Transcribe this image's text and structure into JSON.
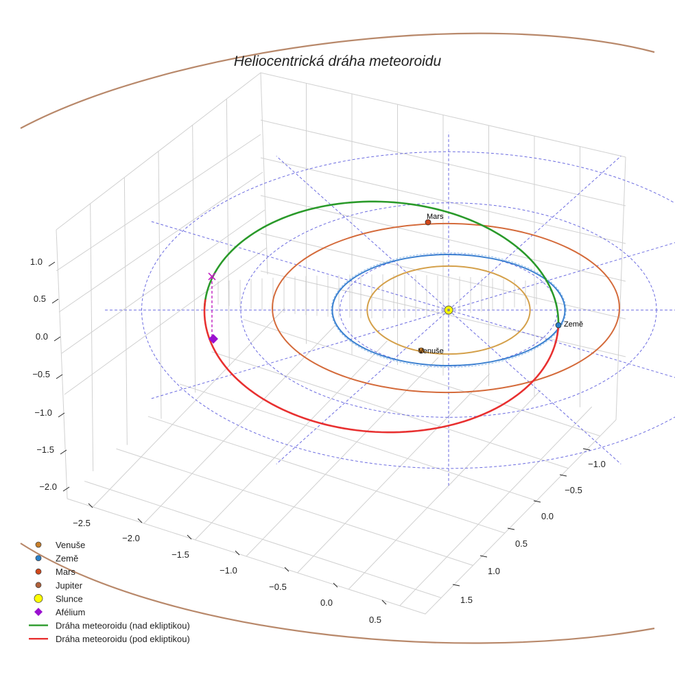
{
  "chart_data": {
    "type": "line",
    "title": "Heliocentrická dráha meteoroidu",
    "projection": "3d",
    "xlabel": "",
    "ylabel": "",
    "zlabel": "",
    "x_ticks": [
      -2.5,
      -2.0,
      -1.5,
      -1.0,
      -0.5,
      0.0,
      0.5
    ],
    "y_ticks": [
      -1.0,
      -0.5,
      0.0,
      0.5,
      1.0,
      1.5
    ],
    "z_ticks": [
      1.0,
      0.5,
      0.0,
      -0.5,
      -1.0,
      -1.5,
      -2.0
    ],
    "x_tick_labels": [
      "−2.5",
      "−2.0",
      "−1.5",
      "−1.0",
      "−0.5",
      "0.0",
      "0.5"
    ],
    "y_tick_labels": [
      "−1.0",
      "−0.5",
      "0.0",
      "0.5",
      "1.0",
      "1.5"
    ],
    "z_tick_labels": [
      "1.0",
      "0.5",
      "0.0",
      "−0.5",
      "−1.0",
      "−1.5",
      "−2.0"
    ],
    "grid": true,
    "legend_position": "lower-left",
    "legend": [
      {
        "label": "Venuše",
        "marker": "circle",
        "color": "#c87f2a"
      },
      {
        "label": "Země",
        "marker": "circle",
        "color": "#2a7fc8"
      },
      {
        "label": "Mars",
        "marker": "circle",
        "color": "#d0471a"
      },
      {
        "label": "Jupiter",
        "marker": "circle",
        "color": "#b0603a"
      },
      {
        "label": "Slunce",
        "marker": "circle",
        "color": "#ffff00"
      },
      {
        "label": "Afélium",
        "marker": "diamond",
        "color": "#9a10d0"
      },
      {
        "label": "Dráha meteoroidu (nad ekliptikou)",
        "marker": "line",
        "color": "#2a9a2a"
      },
      {
        "label": "Dráha meteoroidu (pod ekliptikou)",
        "marker": "line",
        "color": "#e83030"
      }
    ],
    "orbits": [
      {
        "name": "Venuše",
        "radius_au": 0.72,
        "color": "#d4a04a"
      },
      {
        "name": "Země",
        "radius_au": 1.0,
        "color": "#3a80d0"
      },
      {
        "name": "Mars",
        "radius_au": 1.52,
        "color": "#d46a3a"
      },
      {
        "name": "Jupiter",
        "radius_au": 5.2,
        "color": "#b8886a"
      }
    ],
    "planets": [
      {
        "name": "Venuše",
        "label": "Venuše",
        "x": -0.2,
        "y": 0.7,
        "z": 0.0,
        "color": "#c87f2a"
      },
      {
        "name": "Země",
        "label": "Země",
        "x": 0.98,
        "y": -0.15,
        "z": 0.0,
        "color": "#2a7fc8"
      },
      {
        "name": "Mars",
        "label": "Mars",
        "x": -0.2,
        "y": -1.5,
        "z": 0.0,
        "color": "#d0471a"
      }
    ],
    "sun": {
      "label": "Slunce",
      "x": 0.0,
      "y": 0.0,
      "z": 0.0,
      "color": "#ffff00"
    },
    "meteoroid_orbit": {
      "above_ecliptic": {
        "label": "Dráha meteoroidu (nad ekliptikou)",
        "color": "#2a9a2a"
      },
      "below_ecliptic": {
        "label": "Dráha meteoroidu (pod ekliptikou)",
        "color": "#e83030"
      },
      "aphelion_marker": {
        "label": "Afélium",
        "color": "#9a10d0"
      },
      "aphelion_point_marker": {
        "color": "#c020c0"
      }
    }
  }
}
